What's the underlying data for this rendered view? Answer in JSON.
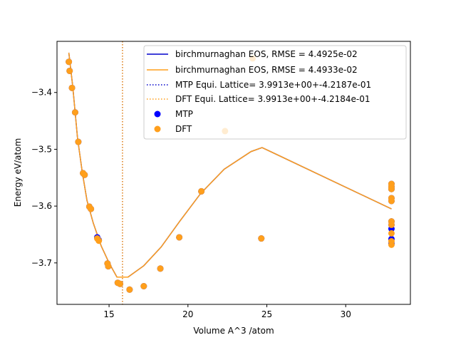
{
  "chart_data": {
    "type": "scatter",
    "xlabel": "Volume  A^3 /atom",
    "ylabel": "Energy eV/atom",
    "xlim": [
      11.7,
      34.1
    ],
    "ylim": [
      -3.773,
      -3.31
    ],
    "xticks": [
      15,
      20,
      25,
      30
    ],
    "yticks": [
      -3.7,
      -3.6,
      -3.5,
      -3.4
    ],
    "ytick_labels": [
      "−3.7",
      "−3.6",
      "−3.5",
      "−3.4"
    ],
    "grid": false,
    "legend_position": "top-right",
    "lines": [
      {
        "name": "birchmurnaghan EOS, RMSE = 4.4925e-02",
        "color": "#0000cc",
        "points": [
          [
            12.45,
            -3.33
          ],
          [
            12.7,
            -3.39
          ],
          [
            13.0,
            -3.48
          ],
          [
            13.3,
            -3.54
          ],
          [
            13.6,
            -3.59
          ],
          [
            14.0,
            -3.63
          ],
          [
            14.5,
            -3.67
          ],
          [
            15.0,
            -3.7
          ],
          [
            15.5,
            -3.725
          ],
          [
            16.2,
            -3.725
          ],
          [
            17.2,
            -3.705
          ],
          [
            18.3,
            -3.672
          ],
          [
            19.5,
            -3.626
          ],
          [
            20.8,
            -3.578
          ],
          [
            22.3,
            -3.535
          ],
          [
            24.0,
            -3.504
          ],
          [
            24.7,
            -3.497
          ],
          [
            32.9,
            -3.605
          ]
        ]
      },
      {
        "name": "birchmurnaghan EOS, RMSE = 4.4933e-02",
        "color": "#ff9f1c",
        "points": [
          [
            12.45,
            -3.33
          ],
          [
            12.7,
            -3.39
          ],
          [
            13.0,
            -3.48
          ],
          [
            13.3,
            -3.54
          ],
          [
            13.6,
            -3.59
          ],
          [
            14.0,
            -3.63
          ],
          [
            14.5,
            -3.67
          ],
          [
            15.0,
            -3.7
          ],
          [
            15.5,
            -3.725
          ],
          [
            16.2,
            -3.725
          ],
          [
            17.2,
            -3.705
          ],
          [
            18.3,
            -3.672
          ],
          [
            19.5,
            -3.626
          ],
          [
            20.8,
            -3.578
          ],
          [
            22.3,
            -3.535
          ],
          [
            24.0,
            -3.504
          ],
          [
            24.7,
            -3.497
          ],
          [
            32.9,
            -3.605
          ]
        ]
      }
    ],
    "vlines": [
      {
        "name": "MTP Equi. Lattice= 3.9913e+00+-4.2187e-01",
        "x": 15.85,
        "color": "#0000cc"
      },
      {
        "name": "DFT Equi. Lattice= 3.9913e+00+-4.2184e-01",
        "x": 15.85,
        "color": "#ff9f1c"
      }
    ],
    "series": [
      {
        "name": "MTP",
        "color": "#0000ff",
        "points": [
          [
            12.45,
            -3.346
          ],
          [
            12.5,
            -3.362
          ],
          [
            12.65,
            -3.392
          ],
          [
            12.85,
            -3.435
          ],
          [
            13.05,
            -3.487
          ],
          [
            13.35,
            -3.542
          ],
          [
            13.45,
            -3.545
          ],
          [
            13.75,
            -3.601
          ],
          [
            13.85,
            -3.605
          ],
          [
            14.25,
            -3.655
          ],
          [
            14.35,
            -3.66
          ],
          [
            14.9,
            -3.701
          ],
          [
            14.95,
            -3.706
          ],
          [
            15.55,
            -3.735
          ],
          [
            15.7,
            -3.737
          ],
          [
            16.3,
            -3.747
          ],
          [
            17.2,
            -3.741
          ],
          [
            18.25,
            -3.71
          ],
          [
            19.45,
            -3.655
          ],
          [
            20.85,
            -3.574
          ],
          [
            24.65,
            -3.657
          ],
          [
            32.9,
            -3.561
          ],
          [
            32.9,
            -3.566
          ],
          [
            32.9,
            -3.57
          ],
          [
            32.9,
            -3.586
          ],
          [
            32.9,
            -3.591
          ],
          [
            32.9,
            -3.627
          ],
          [
            32.9,
            -3.633
          ],
          [
            32.9,
            -3.64
          ],
          [
            32.9,
            -3.658
          ],
          [
            32.9,
            -3.666
          ]
        ]
      },
      {
        "name": "DFT",
        "color": "#ff9f1c",
        "points": [
          [
            12.45,
            -3.346
          ],
          [
            12.5,
            -3.362
          ],
          [
            12.65,
            -3.392
          ],
          [
            12.85,
            -3.435
          ],
          [
            13.05,
            -3.487
          ],
          [
            13.35,
            -3.542
          ],
          [
            13.45,
            -3.545
          ],
          [
            13.75,
            -3.601
          ],
          [
            13.85,
            -3.605
          ],
          [
            14.25,
            -3.657
          ],
          [
            14.35,
            -3.661
          ],
          [
            14.9,
            -3.701
          ],
          [
            14.95,
            -3.706
          ],
          [
            15.55,
            -3.735
          ],
          [
            15.7,
            -3.737
          ],
          [
            16.3,
            -3.747
          ],
          [
            17.2,
            -3.741
          ],
          [
            18.25,
            -3.71
          ],
          [
            19.45,
            -3.655
          ],
          [
            20.85,
            -3.574
          ],
          [
            22.35,
            -3.468
          ],
          [
            24.1,
            -3.34
          ],
          [
            24.65,
            -3.657
          ],
          [
            32.9,
            -3.561
          ],
          [
            32.9,
            -3.566
          ],
          [
            32.9,
            -3.57
          ],
          [
            32.9,
            -3.586
          ],
          [
            32.9,
            -3.591
          ],
          [
            32.9,
            -3.627
          ],
          [
            32.9,
            -3.633
          ],
          [
            32.9,
            -3.648
          ],
          [
            32.9,
            -3.662
          ],
          [
            32.9,
            -3.668
          ]
        ]
      }
    ]
  }
}
